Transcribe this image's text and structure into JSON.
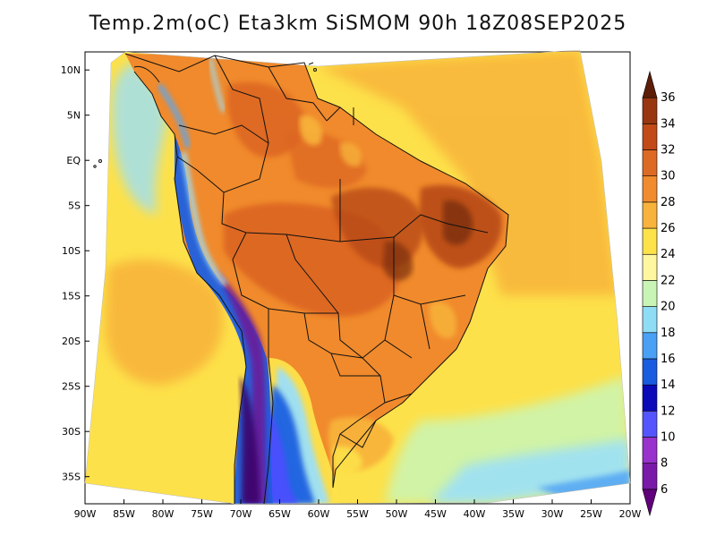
{
  "title": "Temp.2m(oC) Eta3km SiSMOM 90h 18Z08SEP2025",
  "map": {
    "lon_range": [
      -90,
      -20
    ],
    "lat_range": [
      -38,
      12
    ],
    "lat_ticks": [
      {
        "value": 10,
        "label": "10N"
      },
      {
        "value": 5,
        "label": "5N"
      },
      {
        "value": 0,
        "label": "EQ"
      },
      {
        "value": -5,
        "label": "5S"
      },
      {
        "value": -10,
        "label": "10S"
      },
      {
        "value": -15,
        "label": "15S"
      },
      {
        "value": -20,
        "label": "20S"
      },
      {
        "value": -25,
        "label": "25S"
      },
      {
        "value": -30,
        "label": "30S"
      },
      {
        "value": -35,
        "label": "35S"
      }
    ],
    "lon_ticks": [
      {
        "value": -90,
        "label": "90W"
      },
      {
        "value": -85,
        "label": "85W"
      },
      {
        "value": -80,
        "label": "80W"
      },
      {
        "value": -75,
        "label": "75W"
      },
      {
        "value": -70,
        "label": "70W"
      },
      {
        "value": -65,
        "label": "65W"
      },
      {
        "value": -60,
        "label": "60W"
      },
      {
        "value": -55,
        "label": "55W"
      },
      {
        "value": -50,
        "label": "50W"
      },
      {
        "value": -45,
        "label": "45W"
      },
      {
        "value": -40,
        "label": "40W"
      },
      {
        "value": -35,
        "label": "35W"
      },
      {
        "value": -30,
        "label": "30W"
      },
      {
        "value": -25,
        "label": "25W"
      },
      {
        "value": -20,
        "label": "20W"
      }
    ]
  },
  "colorbar": {
    "levels": [
      {
        "label": "6",
        "value": 6,
        "color": "#3a0066"
      },
      {
        "label": "8",
        "value": 8,
        "color": "#6a1b9a"
      },
      {
        "label": "10",
        "value": 10,
        "color": "#9c3cd6"
      },
      {
        "label": "12",
        "value": 12,
        "color": "#4d4dff"
      },
      {
        "label": "14",
        "value": 14,
        "color": "#0a14b4"
      },
      {
        "label": "16",
        "value": 16,
        "color": "#1e60e0"
      },
      {
        "label": "18",
        "value": 18,
        "color": "#56a8f5"
      },
      {
        "label": "20",
        "value": 20,
        "color": "#9ce0f8"
      },
      {
        "label": "22",
        "value": 22,
        "color": "#ccf5b0"
      },
      {
        "label": "24",
        "value": 24,
        "color": "#fff3a3"
      },
      {
        "label": "26",
        "value": 26,
        "color": "#fde14a"
      },
      {
        "label": "28",
        "value": 28,
        "color": "#f8b43a"
      },
      {
        "label": "30",
        "value": 30,
        "color": "#f08a2c"
      },
      {
        "label": "32",
        "value": 32,
        "color": "#dc6524"
      },
      {
        "label": "34",
        "value": 34,
        "color": "#b54616"
      },
      {
        "label": "36",
        "value": 36,
        "color": "#7a2e0f"
      }
    ],
    "bands": [
      "#60007a",
      "#7a1aa8",
      "#9932cc",
      "#5555ff",
      "#0a0ab8",
      "#1a5ce0",
      "#4aa0f5",
      "#8fdcf5",
      "#c8f5b5",
      "#fff7a0",
      "#fde24a",
      "#f8b33c",
      "#f08c2e",
      "#dd6a24",
      "#c24a18",
      "#983612",
      "#5c1e08"
    ]
  }
}
